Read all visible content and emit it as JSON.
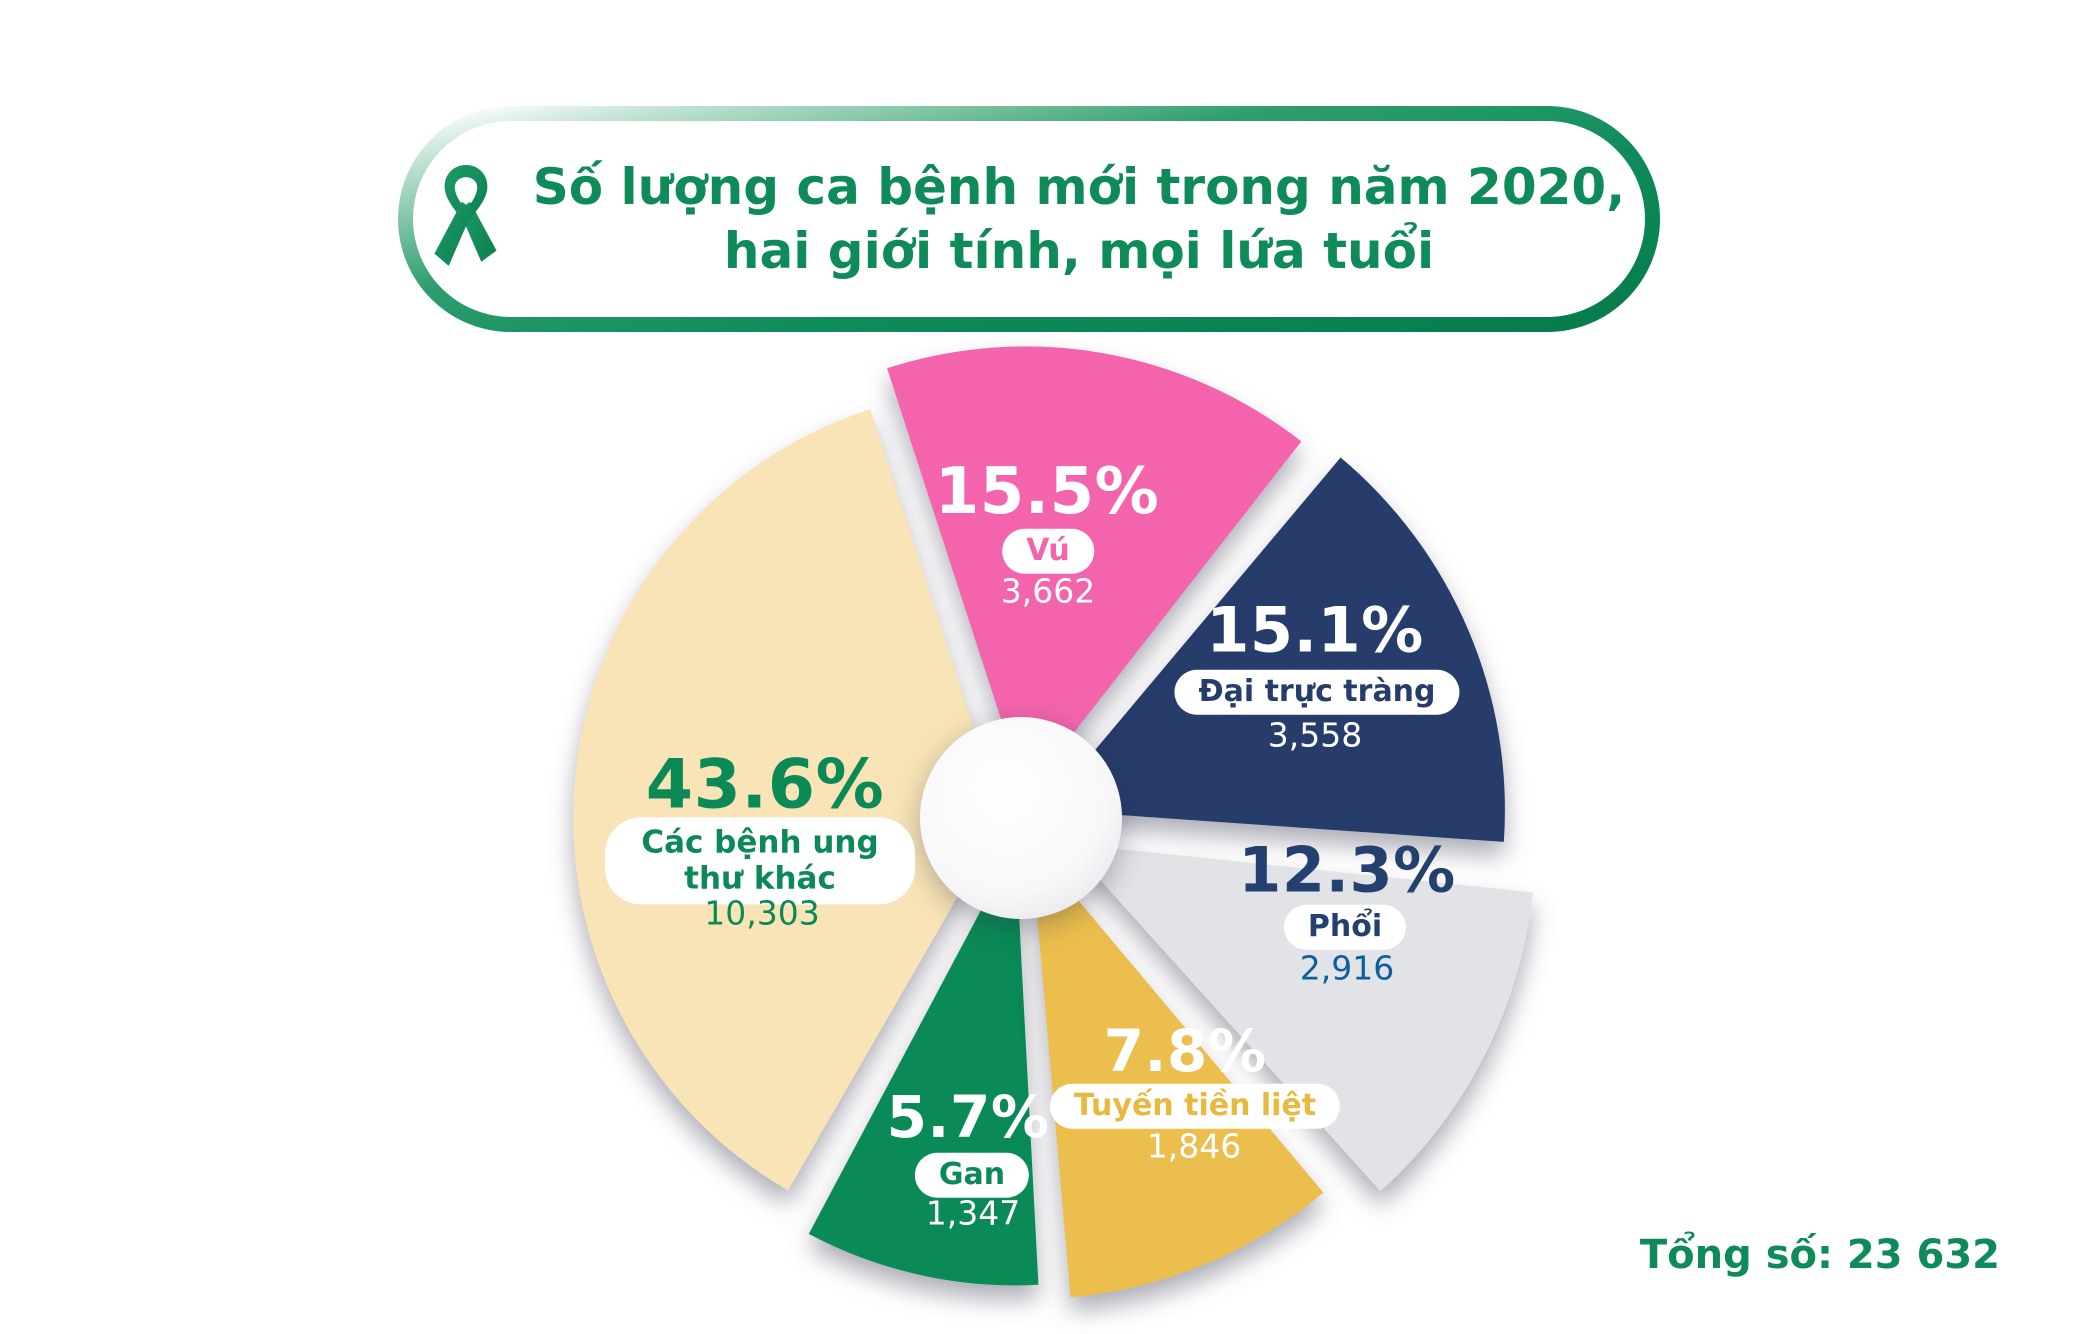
{
  "banner": {
    "title_line1": "Số lượng ca bệnh mới trong năm 2020,",
    "title_line2": "hai giới tính, mọi lứa tuổi",
    "title_color": "#0E8B58",
    "ribbon_icon": "green-awareness-ribbon-icon"
  },
  "footer": {
    "total_label": "Tổng số: 23 632"
  },
  "chart_data": {
    "type": "pie",
    "title": "Số lượng ca bệnh mới trong năm 2020, hai giới tính, mọi lứa tuổi",
    "total_new_cases": 23632,
    "legend_position": "labels-on-slices",
    "slices": [
      {
        "id": "breast",
        "label": "Vú",
        "percent_value": 15.5,
        "percent": "15.5%",
        "value_num": 3662,
        "value": "3,662",
        "color": "#F464AC",
        "percent_color": "#FFFFFF",
        "value_color": "#FFFFFF",
        "pill_bg": "#FFFFFF",
        "pill_text_color": "#F464AC"
      },
      {
        "id": "colorectal",
        "label": "Đại trực tràng",
        "percent_value": 15.1,
        "percent": "15.1%",
        "value_num": 3558,
        "value": "3,558",
        "color": "#263C6B",
        "percent_color": "#FFFFFF",
        "value_color": "#FFFFFF",
        "pill_bg": "#FFFFFF",
        "pill_text_color": "#263C6B"
      },
      {
        "id": "lung",
        "label": "Phổi",
        "percent_value": 12.3,
        "percent": "12.3%",
        "value_num": 2916,
        "value": "2,916",
        "color": "#E2E3E7",
        "percent_color": "#24406E",
        "value_color": "#0E5F9E",
        "pill_bg": "#FFFFFF",
        "pill_text_color": "#24406E"
      },
      {
        "id": "prostate",
        "label": "Tuyến tiền liệt",
        "percent_value": 7.8,
        "percent": "7.8%",
        "value_num": 1846,
        "value": "1,846",
        "color": "#EBBE4D",
        "percent_color": "#FFFFFF",
        "value_color": "#FFFFFF",
        "pill_bg": "#FFFFFF",
        "pill_text_color": "#E9B83E"
      },
      {
        "id": "liver",
        "label": "Gan",
        "percent_value": 5.7,
        "percent": "5.7%",
        "value_num": 1347,
        "value": "1,347",
        "color": "#0A8A56",
        "percent_color": "#FFFFFF",
        "value_color": "#FFFFFF",
        "pill_bg": "#FFFFFF",
        "pill_text_color": "#0A8A56"
      },
      {
        "id": "other",
        "label": "Các bệnh ung thư khác",
        "percent_value": 43.6,
        "percent": "43.6%",
        "value_num": 10303,
        "value": "10,303",
        "color": "#F8E4B6",
        "percent_color": "#0B8A57",
        "value_color": "#0B8A57",
        "pill_bg": "#FFFFFF",
        "pill_text_color": "#0B8A57"
      }
    ]
  }
}
